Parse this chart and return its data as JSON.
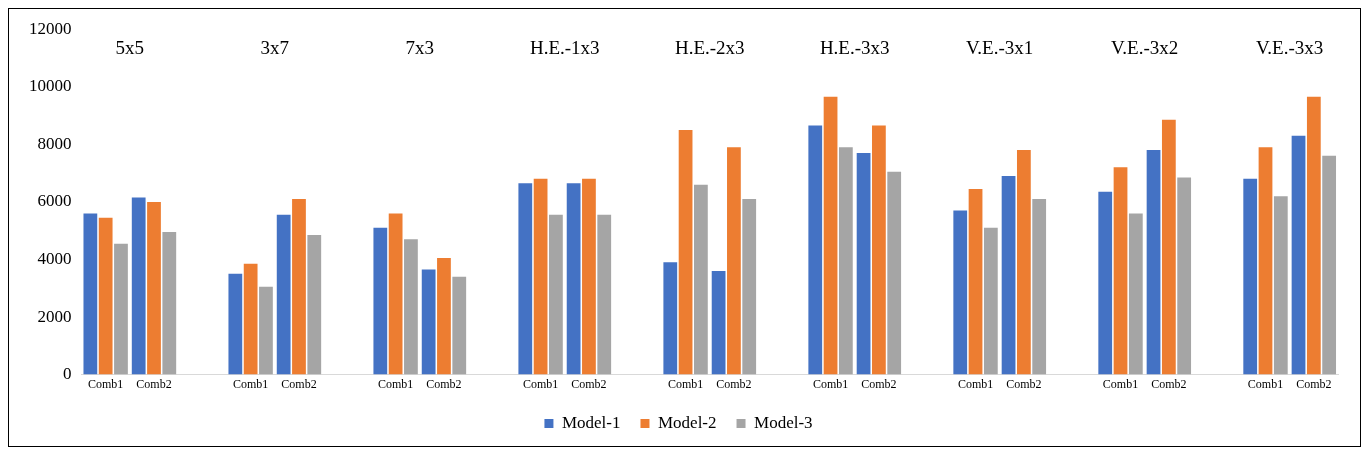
{
  "chart_data": {
    "type": "bar",
    "categories": [
      "Comb1",
      "Comb2",
      null,
      "Comb1",
      "Comb2",
      null,
      "Comb1",
      "Comb2",
      null,
      "Comb1",
      "Comb2",
      null,
      "Comb1",
      "Comb2",
      null,
      "Comb1",
      "Comb2",
      null,
      "Comb1",
      "Comb2",
      null,
      "Comb1",
      "Comb2",
      null,
      "Comb1",
      "Comb2"
    ],
    "series": [
      {
        "name": "Model-1",
        "color": "#4472c4",
        "values": [
          5600,
          6150,
          null,
          3500,
          5550,
          null,
          5100,
          3650,
          null,
          6650,
          6650,
          null,
          3900,
          3600,
          null,
          8650,
          7700,
          null,
          5700,
          6900,
          null,
          6350,
          7800,
          null,
          6800,
          8300
        ]
      },
      {
        "name": "Model-2",
        "color": "#ed7d31",
        "values": [
          5450,
          6000,
          null,
          3850,
          6100,
          null,
          5600,
          4050,
          null,
          6800,
          6800,
          null,
          8500,
          7900,
          null,
          9650,
          8650,
          null,
          6450,
          7800,
          null,
          7200,
          8850,
          null,
          7900,
          9650
        ]
      },
      {
        "name": "Model-3",
        "color": "#a5a5a5",
        "values": [
          4550,
          4950,
          null,
          3050,
          4850,
          null,
          4700,
          3400,
          null,
          5550,
          5550,
          null,
          6600,
          6100,
          null,
          7900,
          7050,
          null,
          5100,
          6100,
          null,
          5600,
          6850,
          null,
          6200,
          7600
        ]
      }
    ],
    "annotations": [
      "5x5",
      "3x7",
      "7x3",
      "H.E.-1x3",
      "H.E.-2x3",
      "H.E.-3x3",
      "V.E.-3x1",
      "V.E.-3x2",
      "V.E.-3x3"
    ],
    "ylim": [
      0,
      12000
    ],
    "yticks": [
      0,
      2000,
      4000,
      6000,
      8000,
      10000,
      12000
    ],
    "grid": false,
    "legend": "bottom"
  }
}
